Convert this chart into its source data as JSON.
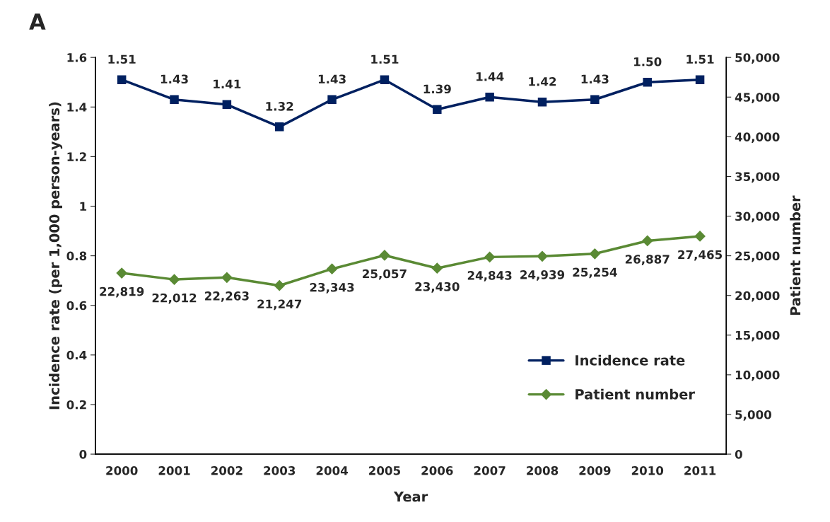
{
  "chart_data": {
    "type": "line",
    "title": "A",
    "xlabel": "Year",
    "ylabel": "Incidence rate (per 1,000 person-years)",
    "y2label": "Patient number",
    "categories": [
      "2000",
      "2001",
      "2002",
      "2003",
      "2004",
      "2005",
      "2006",
      "2007",
      "2008",
      "2009",
      "2010",
      "2011"
    ],
    "series": [
      {
        "name": "Incidence rate",
        "color": "#002060",
        "marker": "square",
        "values": [
          1.51,
          1.43,
          1.41,
          1.32,
          1.43,
          1.51,
          1.39,
          1.44,
          1.42,
          1.43,
          1.5,
          1.51
        ],
        "value_labels": [
          "1.51",
          "1.43",
          "1.41",
          "1.32",
          "1.43",
          "1.51",
          "1.39",
          "1.44",
          "1.42",
          "1.43",
          "1.50",
          "1.51"
        ]
      },
      {
        "name": "Patient number",
        "color": "#5a8a34",
        "marker": "diamond",
        "axis": "y2",
        "values": [
          22819,
          22012,
          22263,
          21247,
          23343,
          25057,
          23430,
          24843,
          24939,
          25254,
          26887,
          27465
        ],
        "value_labels": [
          "22,819",
          "22,012",
          "22,263",
          "21,247",
          "23,343",
          "25,057",
          "23,430",
          "24,843",
          "24,939",
          "25,254",
          "26,887",
          "27,465"
        ]
      }
    ],
    "ylim": [
      0,
      1.6
    ],
    "yticks": [
      0,
      0.2,
      0.4,
      0.6,
      0.8,
      1,
      1.2,
      1.4,
      1.6
    ],
    "y2lim": [
      0,
      50000
    ],
    "y2ticks": [
      0,
      {
        "value": 5000,
        "label": "5,000"
      },
      {
        "value": 10000,
        "label": "10,000"
      },
      {
        "value": 15000,
        "label": "15,000"
      },
      {
        "value": 20000,
        "label": "20,000"
      },
      {
        "value": 25000,
        "label": "25,000"
      },
      {
        "value": 30000,
        "label": "30,000"
      },
      {
        "value": 35000,
        "label": "35,000"
      },
      {
        "value": 40000,
        "label": "40,000"
      },
      {
        "value": 45000,
        "label": "45,000"
      },
      {
        "value": 50000,
        "label": "50,000"
      }
    ],
    "grid": false,
    "legend": "bottom right",
    "line_style": "solid"
  }
}
